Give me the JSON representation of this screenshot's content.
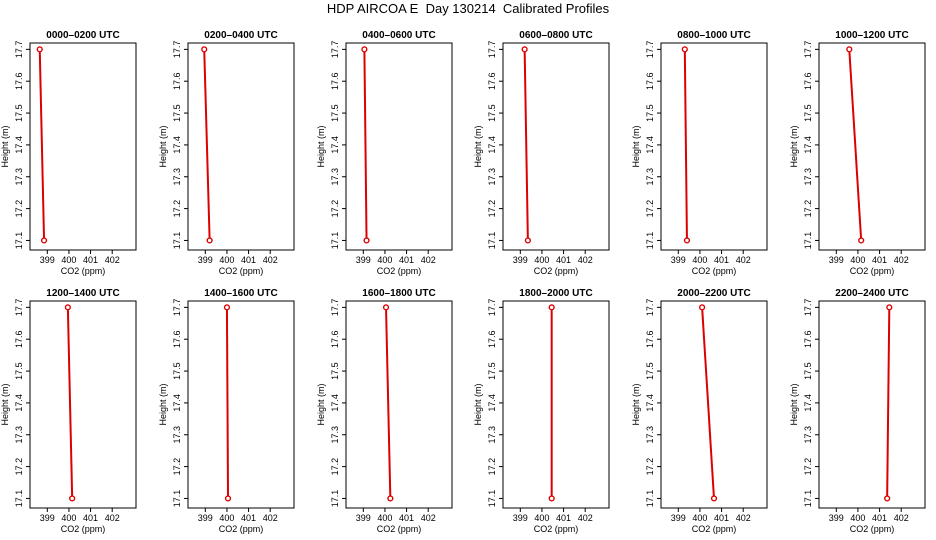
{
  "figure": {
    "title": "HDP AIRCOA E  Day 130214  Calibrated Profiles"
  },
  "colors": {
    "series": "#dd0000",
    "axis": "#000000"
  },
  "axes": {
    "xlabel": "CO2 (ppm)",
    "ylabel": "Height (m)",
    "xlim": [
      398.2,
      403.1
    ],
    "ylim": [
      17.07,
      17.72
    ],
    "xticks": [
      "399",
      "400",
      "401",
      "402"
    ],
    "yticks": [
      "17.1",
      "17.2",
      "17.3",
      "17.4",
      "17.5",
      "17.6",
      "17.7"
    ]
  },
  "chart_data": [
    {
      "type": "line",
      "title": "0000–0200 UTC",
      "x": [
        398.65,
        398.85
      ],
      "y": [
        17.7,
        17.1
      ]
    },
    {
      "type": "line",
      "title": "0200–0400 UTC",
      "x": [
        398.95,
        399.2
      ],
      "y": [
        17.7,
        17.1
      ]
    },
    {
      "type": "line",
      "title": "0400–0600 UTC",
      "x": [
        399.05,
        399.15
      ],
      "y": [
        17.7,
        17.1
      ]
    },
    {
      "type": "line",
      "title": "0600–0800 UTC",
      "x": [
        399.2,
        399.35
      ],
      "y": [
        17.7,
        17.1
      ]
    },
    {
      "type": "line",
      "title": "0800–1000 UTC",
      "x": [
        399.3,
        399.4
      ],
      "y": [
        17.7,
        17.1
      ]
    },
    {
      "type": "line",
      "title": "1000–1200 UTC",
      "x": [
        399.6,
        400.15
      ],
      "y": [
        17.7,
        17.1
      ]
    },
    {
      "type": "line",
      "title": "1200–1400 UTC",
      "x": [
        399.95,
        400.15
      ],
      "y": [
        17.7,
        17.1
      ]
    },
    {
      "type": "line",
      "title": "1400–1600 UTC",
      "x": [
        400.0,
        400.05
      ],
      "y": [
        17.7,
        17.1
      ]
    },
    {
      "type": "line",
      "title": "1600–1800 UTC",
      "x": [
        400.05,
        400.25
      ],
      "y": [
        17.7,
        17.1
      ]
    },
    {
      "type": "line",
      "title": "1800–2000 UTC",
      "x": [
        400.45,
        400.45
      ],
      "y": [
        17.7,
        17.1
      ]
    },
    {
      "type": "line",
      "title": "2000–2200 UTC",
      "x": [
        400.1,
        400.65
      ],
      "y": [
        17.7,
        17.1
      ]
    },
    {
      "type": "line",
      "title": "2200–2400 UTC",
      "x": [
        401.45,
        401.35
      ],
      "y": [
        17.7,
        17.1
      ]
    }
  ]
}
